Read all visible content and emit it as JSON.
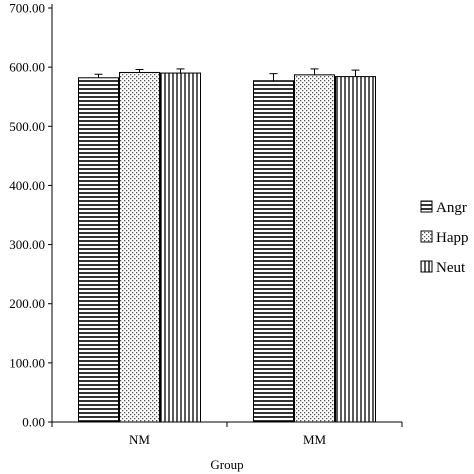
{
  "chart_data": {
    "type": "bar",
    "title": "",
    "xlabel": "Group",
    "ylabel": "",
    "categories": [
      "NM",
      "MM"
    ],
    "ylim": [
      0,
      700
    ],
    "yticks": [
      "0.00",
      "100.00",
      "200.00",
      "300.00",
      "400.00",
      "500.00",
      "600.00",
      "700.00"
    ],
    "grid": false,
    "legend_position": "right",
    "series": [
      {
        "name": "Angry",
        "legend_text": "Angr",
        "pattern": "horizontal-lines",
        "values": [
          582,
          577
        ],
        "errors": [
          6,
          12
        ]
      },
      {
        "name": "Happy",
        "legend_text": "Happ",
        "pattern": "dots",
        "values": [
          591,
          587
        ],
        "errors": [
          5,
          10
        ]
      },
      {
        "name": "Neutral",
        "legend_text": "Neut",
        "pattern": "vertical-lines",
        "values": [
          590,
          584
        ],
        "errors": [
          7,
          11
        ]
      }
    ]
  }
}
